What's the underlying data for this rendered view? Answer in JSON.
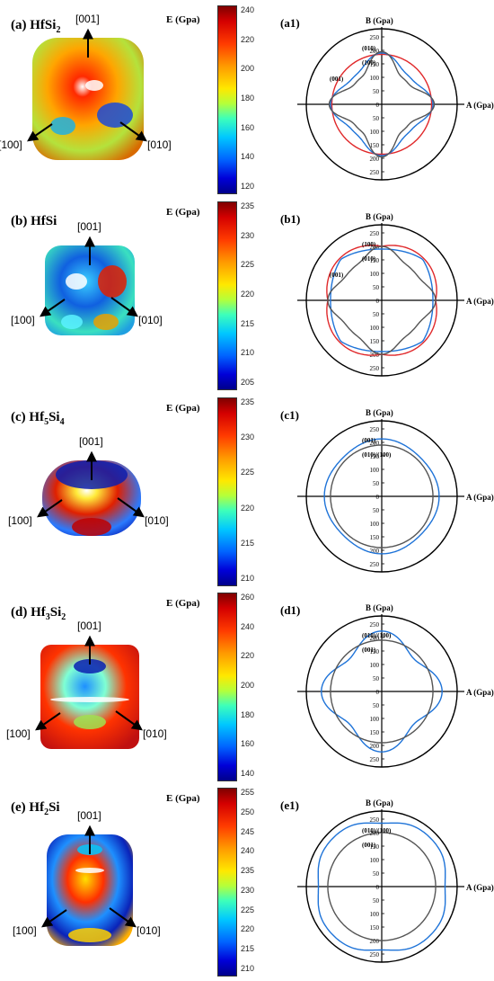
{
  "colorbar_label": "E (Gpa)",
  "axis_a_label": "A (Gpa)",
  "axis_b_label": "B (Gpa)",
  "directions": [
    "[001]",
    "[100]",
    "[010]"
  ],
  "polar_ticks": [
    "250",
    "200",
    "150",
    "100",
    "50",
    "0",
    "50",
    "100",
    "150",
    "200",
    "250"
  ],
  "panels": [
    {
      "id": "a",
      "letter": "(a)",
      "el": "Hf",
      "el_sub": "",
      "si": "Si",
      "si_sub": "2",
      "polar_label": "(a1)",
      "cb_ticks": [
        "240",
        "220",
        "200",
        "180",
        "160",
        "140",
        "120"
      ],
      "plane_labels": [
        "(010)",
        "(100)",
        "(001)"
      ],
      "curve_colors": [
        "#e0282a",
        "#1e73d8",
        "#555555"
      ]
    },
    {
      "id": "b",
      "letter": "(b)",
      "el": "Hf",
      "el_sub": "",
      "si": "Si",
      "si_sub": "",
      "polar_label": "(b1)",
      "cb_ticks": [
        "235",
        "230",
        "225",
        "220",
        "215",
        "210",
        "205"
      ],
      "plane_labels": [
        "(100)",
        "(010)",
        "(001)"
      ],
      "curve_colors": [
        "#e0282a",
        "#1e73d8",
        "#555555"
      ]
    },
    {
      "id": "c",
      "letter": "(c)",
      "el": "Hf",
      "el_sub": "5",
      "si": "Si",
      "si_sub": "4",
      "polar_label": "(c1)",
      "cb_ticks": [
        "235",
        "230",
        "225",
        "220",
        "215",
        "210"
      ],
      "plane_labels": [
        "(001)",
        "(010)/(100)"
      ],
      "curve_colors": [
        "#1e73d8",
        "#555555"
      ]
    },
    {
      "id": "d",
      "letter": "(d)",
      "el": "Hf",
      "el_sub": "3",
      "si": "Si",
      "si_sub": "2",
      "polar_label": "(d1)",
      "cb_ticks": [
        "260",
        "240",
        "220",
        "200",
        "180",
        "160",
        "140"
      ],
      "plane_labels": [
        "(010)/(100)",
        "(001)"
      ],
      "curve_colors": [
        "#1e73d8",
        "#555555"
      ]
    },
    {
      "id": "e",
      "letter": "(e)",
      "el": "Hf",
      "el_sub": "2",
      "si": "Si",
      "si_sub": "",
      "polar_label": "(e1)",
      "cb_ticks": [
        "255",
        "250",
        "245",
        "240",
        "235",
        "230",
        "225",
        "220",
        "215",
        "210"
      ],
      "plane_labels": [
        "(010)/(100)",
        "(001)"
      ],
      "curve_colors": [
        "#1e73d8",
        "#555555"
      ]
    }
  ]
}
